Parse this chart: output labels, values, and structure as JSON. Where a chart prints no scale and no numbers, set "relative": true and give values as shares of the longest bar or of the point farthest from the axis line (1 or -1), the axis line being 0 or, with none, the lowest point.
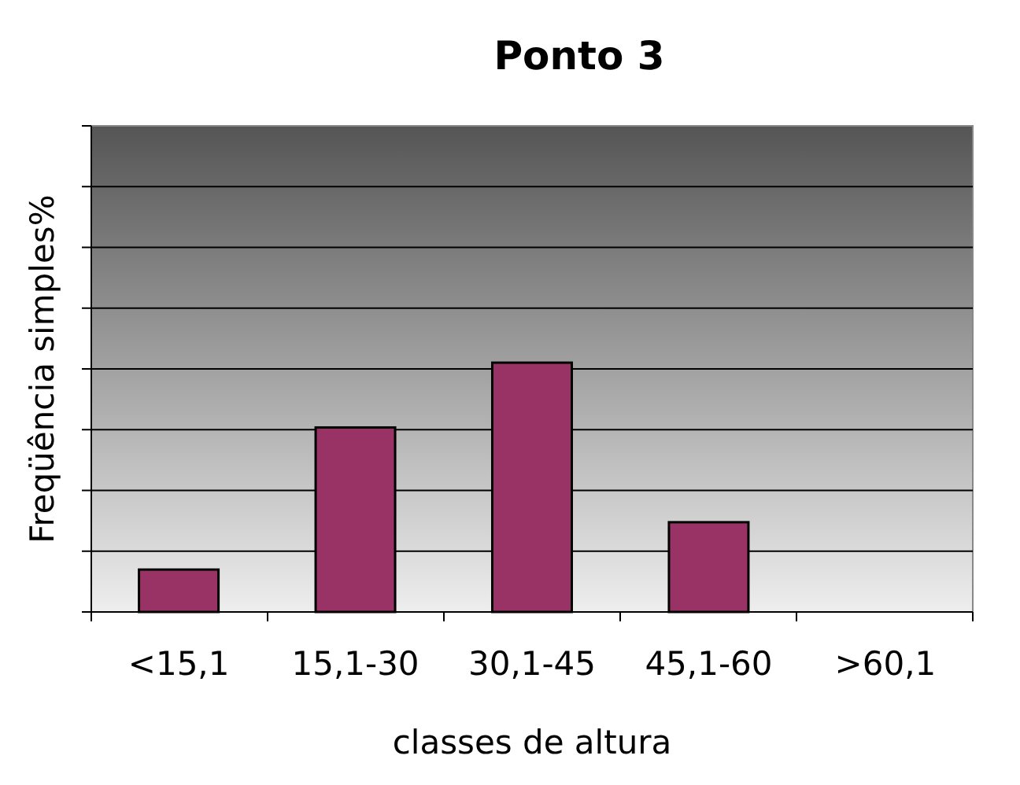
{
  "chart_data": {
    "type": "bar",
    "title": "Ponto 3",
    "xlabel": "classes de altura",
    "ylabel": "Freqüência simples%",
    "categories": [
      "<15,1",
      "15,1-30",
      "30,1-45",
      "45,1-60",
      ">60,1"
    ],
    "values": [
      0.17,
      0.74,
      1,
      0.36,
      0
    ],
    "color": "#993366",
    "relative": true,
    "grid": "y"
  }
}
